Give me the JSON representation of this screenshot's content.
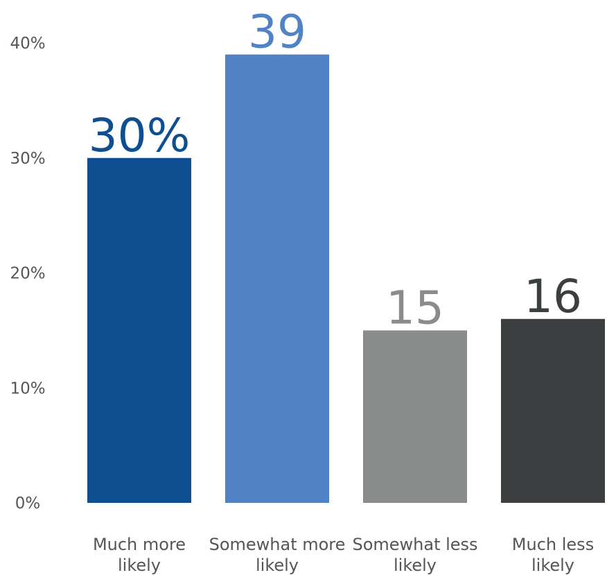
{
  "chart_data": {
    "type": "bar",
    "categories": [
      [
        "Much more",
        "likely"
      ],
      [
        "Somewhat more",
        "likely"
      ],
      [
        "Somewhat less",
        "likely"
      ],
      [
        "Much less",
        "likely"
      ]
    ],
    "values": [
      30,
      39,
      15,
      16
    ],
    "value_labels": [
      "30%",
      "39",
      "15",
      "16"
    ],
    "colors": [
      "#0e4f91",
      "#5182c6",
      "#898c8b",
      "#3c3f40"
    ],
    "ylim": [
      0,
      40
    ],
    "yticks": [
      0,
      10,
      20,
      30,
      40
    ],
    "ytick_labels": [
      "0%",
      "10%",
      "20%",
      "30%",
      "40%"
    ],
    "grid": false,
    "title": "",
    "xlabel": "",
    "ylabel": ""
  }
}
